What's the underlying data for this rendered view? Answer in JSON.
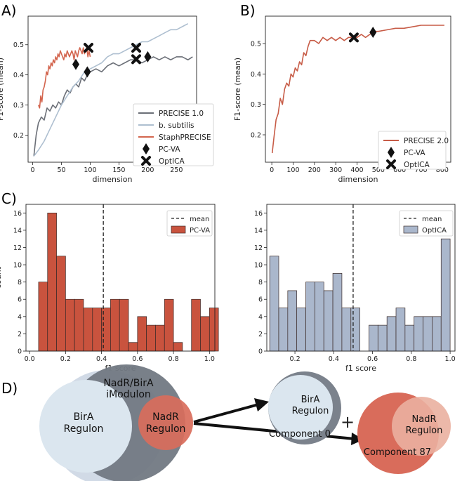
{
  "colors": {
    "precise1": "#6b6f77",
    "bsub": "#aebfd0",
    "staph": "#d3654e",
    "precise2": "#c75c47",
    "pcva_bar": "#c9533e",
    "optica_bar": "#aab7cc",
    "bar_edge": "#3a2a28",
    "venn_grey": "#6f7680",
    "venn_light": "#dbe6ef",
    "venn_red": "#d96c5b",
    "venn_pale": "#e8b5a6"
  },
  "panels": {
    "a": "A)",
    "b": "B)",
    "c": "C)",
    "d": "D)"
  },
  "chart_data": [
    {
      "id": "A",
      "type": "line",
      "title": "",
      "xlabel": "dimension",
      "ylabel": "F1-score (mean)",
      "xlim": [
        -8,
        285
      ],
      "ylim": [
        0.11,
        0.595
      ],
      "xticks": [
        0,
        50,
        100,
        150,
        200,
        250
      ],
      "yticks": [
        0.2,
        0.3,
        0.4,
        0.5
      ],
      "ytick_labels": [
        "0.2",
        "0.3",
        "0.4",
        "0.5"
      ],
      "legend_loc": "lower right",
      "legend": [
        "PRECISE 1.0",
        "b. subtilis",
        "StaphPRECISE",
        "PC-VA",
        "OptICA"
      ],
      "series": [
        {
          "name": "PRECISE 1.0",
          "color_key": "precise1",
          "x": [
            2,
            6,
            10,
            15,
            20,
            25,
            30,
            35,
            40,
            45,
            50,
            55,
            60,
            65,
            70,
            75,
            80,
            85,
            90,
            95,
            100,
            110,
            120,
            130,
            140,
            150,
            160,
            170,
            180,
            190,
            200,
            210,
            220,
            230,
            240,
            250,
            260,
            270,
            278
          ],
          "y": [
            0.13,
            0.2,
            0.24,
            0.26,
            0.25,
            0.29,
            0.28,
            0.3,
            0.29,
            0.31,
            0.3,
            0.33,
            0.35,
            0.34,
            0.36,
            0.37,
            0.36,
            0.39,
            0.38,
            0.4,
            0.41,
            0.42,
            0.41,
            0.43,
            0.44,
            0.43,
            0.44,
            0.45,
            0.45,
            0.44,
            0.45,
            0.46,
            0.45,
            0.46,
            0.45,
            0.46,
            0.46,
            0.45,
            0.46
          ]
        },
        {
          "name": "b. subtilis",
          "color_key": "bsub",
          "x": [
            2,
            10,
            20,
            30,
            40,
            50,
            60,
            70,
            80,
            90,
            100,
            110,
            120,
            130,
            140,
            150,
            160,
            170,
            180,
            190,
            200,
            210,
            220,
            230,
            240,
            250,
            260,
            270
          ],
          "y": [
            0.13,
            0.15,
            0.18,
            0.22,
            0.26,
            0.3,
            0.33,
            0.36,
            0.38,
            0.41,
            0.42,
            0.43,
            0.44,
            0.46,
            0.47,
            0.47,
            0.48,
            0.49,
            0.5,
            0.51,
            0.51,
            0.52,
            0.53,
            0.54,
            0.55,
            0.55,
            0.56,
            0.57
          ]
        },
        {
          "name": "StaphPRECISE",
          "color_key": "staph",
          "x": [
            10,
            12,
            14,
            16,
            18,
            20,
            22,
            24,
            26,
            28,
            30,
            32,
            34,
            36,
            38,
            40,
            42,
            44,
            46,
            48,
            50,
            52,
            54,
            56,
            58,
            60,
            62,
            64,
            66,
            68,
            70,
            72,
            74,
            76,
            78,
            80,
            82,
            84,
            86,
            88,
            90,
            92,
            94,
            96,
            98,
            100
          ],
          "y": [
            0.3,
            0.29,
            0.33,
            0.31,
            0.35,
            0.36,
            0.38,
            0.41,
            0.4,
            0.43,
            0.42,
            0.44,
            0.43,
            0.45,
            0.44,
            0.46,
            0.45,
            0.47,
            0.46,
            0.48,
            0.47,
            0.46,
            0.45,
            0.47,
            0.46,
            0.48,
            0.47,
            0.46,
            0.47,
            0.48,
            0.47,
            0.45,
            0.48,
            0.47,
            0.46,
            0.48,
            0.49,
            0.48,
            0.47,
            0.49,
            0.47,
            0.48,
            0.49,
            0.46,
            0.48,
            0.46
          ]
        }
      ],
      "markers": [
        {
          "name": "PC-VA",
          "shape": "diamond",
          "points": [
            [
              75,
              0.435
            ],
            [
              95,
              0.41
            ],
            [
              200,
              0.46
            ]
          ]
        },
        {
          "name": "OptICA",
          "shape": "x",
          "points": [
            [
              97,
              0.49
            ],
            [
              180,
              0.49
            ],
            [
              180,
              0.452
            ]
          ]
        }
      ]
    },
    {
      "id": "B",
      "type": "line",
      "title": "",
      "xlabel": "dimension",
      "ylabel": "F1-score (mean)",
      "xlim": [
        -30,
        840
      ],
      "ylim": [
        0.11,
        0.59
      ],
      "xticks": [
        0,
        100,
        200,
        300,
        400,
        500,
        600,
        700,
        800
      ],
      "yticks": [
        0.2,
        0.3,
        0.4,
        0.5
      ],
      "ytick_labels": [
        "0.2",
        "0.3",
        "0.4",
        "0.5"
      ],
      "legend_loc": "lower right",
      "legend": [
        "PRECISE 2.0",
        "PC-VA",
        "OptICA"
      ],
      "series": [
        {
          "name": "PRECISE 2.0",
          "color_key": "precise2",
          "x": [
            2,
            10,
            20,
            30,
            40,
            50,
            60,
            70,
            80,
            90,
            100,
            110,
            120,
            130,
            140,
            150,
            160,
            170,
            180,
            200,
            220,
            240,
            260,
            280,
            300,
            320,
            340,
            360,
            380,
            400,
            420,
            440,
            460,
            480,
            500,
            540,
            580,
            620,
            660,
            700,
            740,
            780,
            810
          ],
          "y": [
            0.14,
            0.19,
            0.25,
            0.27,
            0.32,
            0.3,
            0.35,
            0.37,
            0.36,
            0.4,
            0.39,
            0.42,
            0.41,
            0.44,
            0.43,
            0.47,
            0.46,
            0.49,
            0.51,
            0.51,
            0.5,
            0.52,
            0.51,
            0.52,
            0.51,
            0.52,
            0.51,
            0.52,
            0.52,
            0.52,
            0.53,
            0.52,
            0.53,
            0.54,
            0.54,
            0.545,
            0.55,
            0.55,
            0.555,
            0.56,
            0.56,
            0.56,
            0.56
          ]
        }
      ],
      "markers": [
        {
          "name": "PC-VA",
          "shape": "diamond",
          "points": [
            [
              475,
              0.537
            ]
          ]
        },
        {
          "name": "OptICA",
          "shape": "x",
          "points": [
            [
              385,
              0.52
            ]
          ]
        }
      ]
    },
    {
      "id": "C-left",
      "type": "bar",
      "title": "",
      "xlabel": "f1 score",
      "ylabel": "count",
      "xlim": [
        -0.02,
        1.03
      ],
      "ylim": [
        0,
        17
      ],
      "xticks": [
        0.0,
        0.2,
        0.4,
        0.6,
        0.8,
        1.0
      ],
      "xtick_labels": [
        "0.0",
        "0.2",
        "0.4",
        "0.6",
        "0.8",
        "1.0"
      ],
      "yticks": [
        0,
        2,
        4,
        6,
        8,
        10,
        12,
        14,
        16
      ],
      "legend_loc": "top-right",
      "legend": [
        "mean",
        "PC-VA"
      ],
      "mean": 0.41,
      "bin_start": 0.05,
      "bin_width": 0.05,
      "values": [
        8,
        16,
        11,
        6,
        6,
        5,
        5,
        5,
        6,
        6,
        1,
        4,
        3,
        3,
        6,
        1,
        0,
        6,
        4,
        5
      ]
    },
    {
      "id": "C-right",
      "type": "bar",
      "title": "",
      "xlabel": "f1 score",
      "ylabel": "",
      "xlim": [
        0.055,
        1.025
      ],
      "ylim": [
        0,
        17
      ],
      "xticks": [
        0.2,
        0.4,
        0.6,
        0.8,
        1.0
      ],
      "xtick_labels": [
        "0.2",
        "0.4",
        "0.6",
        "0.8",
        "1.0"
      ],
      "yticks": [
        0,
        2,
        4,
        6,
        8,
        10,
        12,
        14,
        16
      ],
      "legend_loc": "top-right",
      "legend": [
        "mean",
        "OptICA"
      ],
      "mean": 0.5,
      "bin_start": 0.07,
      "bin_width": 0.0465,
      "values": [
        11,
        5,
        7,
        5,
        8,
        8,
        7,
        9,
        5,
        5,
        0,
        3,
        3,
        4,
        5,
        3,
        4,
        4,
        4,
        13
      ]
    }
  ],
  "venn": {
    "imodulon_label_1": "NadR/BirA",
    "imodulon_label_2": "iModulon",
    "birA_label_1": "BirA",
    "birA_label_2": "Regulon",
    "nadR_label_1": "NadR",
    "nadR_label_2": "Regulon",
    "comp0_birA_1": "BirA",
    "comp0_birA_2": "Regulon",
    "comp0_label": "Component 0",
    "plus": "+",
    "comp87_nadR_1": "NadR",
    "comp87_nadR_2": "Regulon",
    "comp87_label": "Component 87"
  }
}
